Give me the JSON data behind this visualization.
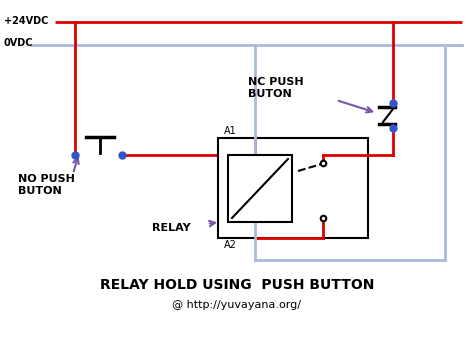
{
  "bg_color": "#ffffff",
  "title": "RELAY HOLD USING  PUSH BUTTON",
  "subtitle": "@ http://yuvayana.org/",
  "label_24vdc": "+24VDC",
  "label_0vdc": "0VDC",
  "label_no": "NO PUSH\nBUTON",
  "label_nc": "NC PUSH\nBUTON",
  "label_relay": "RELAY",
  "label_a1": "A1",
  "label_a2": "A2",
  "wire_red": "#dd0000",
  "wire_blue": "#aabbdd",
  "dot_color": "#3355cc",
  "arrow_color": "#7755aa",
  "figsize": [
    4.74,
    3.39
  ],
  "dpi": 100
}
